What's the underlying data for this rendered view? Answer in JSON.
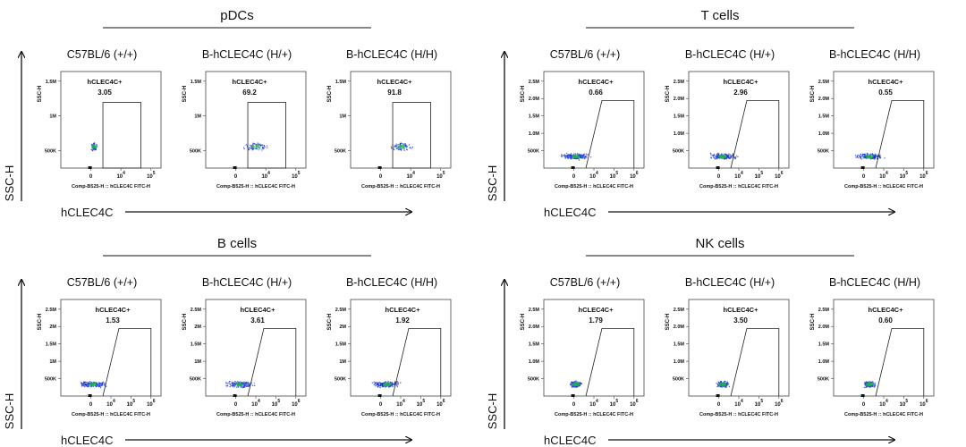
{
  "panels": [
    {
      "title": "pDCs",
      "y_axis": "SSC-H",
      "x_axis": "hCLEC4C",
      "gate_shape": "rect",
      "y_param": "SSC-H",
      "x_param": "Comp-B525-H :: hCLEC4C FITC-H",
      "yticks": [
        "1.5M",
        "1M",
        "500K"
      ],
      "xticks": [
        {
          "base": "0"
        },
        {
          "base": "10",
          "exp": "4"
        },
        {
          "base": "10",
          "exp": "5"
        }
      ],
      "plots": [
        {
          "label": "C57BL/6 (+/+)",
          "gate": "hCLEC4C+",
          "value": "3.05"
        },
        {
          "label": "B-hCLEC4C (H/+)",
          "gate": "hCLEC4C+",
          "value": "69.2"
        },
        {
          "label": "B-hCLEC4C (H/H)",
          "gate": "hCLEC4C+",
          "value": "91.8"
        }
      ]
    },
    {
      "title": "T cells",
      "y_axis": "SSC-H",
      "x_axis": "hCLEC4C",
      "gate_shape": "trapezoid",
      "y_param": "SSC-H",
      "x_param": "Comp-B525-H :: hCLEC4C FITC-H",
      "yticks": [
        "2.5M",
        "2.0M",
        "1.5M",
        "1.0M",
        "500K"
      ],
      "xticks": [
        {
          "base": "0"
        },
        {
          "base": "10",
          "exp": "4"
        },
        {
          "base": "10",
          "exp": "5"
        },
        {
          "base": "10",
          "exp": "6"
        }
      ],
      "plots": [
        {
          "label": "C57BL/6 (+/+)",
          "gate": "hCLEC4C+",
          "value": "0.66"
        },
        {
          "label": "B-hCLEC4C (H/+)",
          "gate": "hCLEC4C+",
          "value": "2.96"
        },
        {
          "label": "B-hCLEC4C (H/H)",
          "gate": "hCLEC4C+",
          "value": "0.55"
        }
      ]
    },
    {
      "title": "B cells",
      "y_axis": "SSC-H",
      "x_axis": "hCLEC4C",
      "gate_shape": "trapezoid",
      "y_param": "SSC-H",
      "x_param": "Comp-B525-H :: hCLEC4C FITC-H",
      "yticks": [
        "2.5M",
        "2M",
        "1.5M",
        "1M",
        "500K"
      ],
      "xticks": [
        {
          "base": "0"
        },
        {
          "base": "10",
          "exp": "4"
        },
        {
          "base": "10",
          "exp": "5"
        },
        {
          "base": "10",
          "exp": "6"
        }
      ],
      "plots": [
        {
          "label": "C57BL/6 (+/+)",
          "gate": "hCLEC4C+",
          "value": "1.53"
        },
        {
          "label": "B-hCLEC4C (H/+)",
          "gate": "hCLEC4C+",
          "value": "3.61"
        },
        {
          "label": "B-hCLEC4C (H/H)",
          "gate": "hCLEC4C+",
          "value": "1.92"
        }
      ]
    },
    {
      "title": "NK cells",
      "y_axis": "SSC-H",
      "x_axis": "hCLEC4C",
      "gate_shape": "trapezoid",
      "y_param": "SSC-H",
      "x_param": "Comp-B525-H :: hCLEC4C FITC-H",
      "yticks": [
        "2.5M",
        "2.0M",
        "1.5M",
        "1.0M",
        "500K"
      ],
      "xticks": [
        {
          "base": "0"
        },
        {
          "base": "10",
          "exp": "4"
        },
        {
          "base": "10",
          "exp": "5"
        },
        {
          "base": "10",
          "exp": "6"
        }
      ],
      "plots": [
        {
          "label": "C57BL/6 (+/+)",
          "gate": "hCLEC4C+",
          "value": "1.79"
        },
        {
          "label": "B-hCLEC4C (H/+)",
          "gate": "hCLEC4C+",
          "value": "3.50"
        },
        {
          "label": "B-hCLEC4C (H/H)",
          "gate": "hCLEC4C+",
          "value": "0.60"
        }
      ]
    }
  ]
}
